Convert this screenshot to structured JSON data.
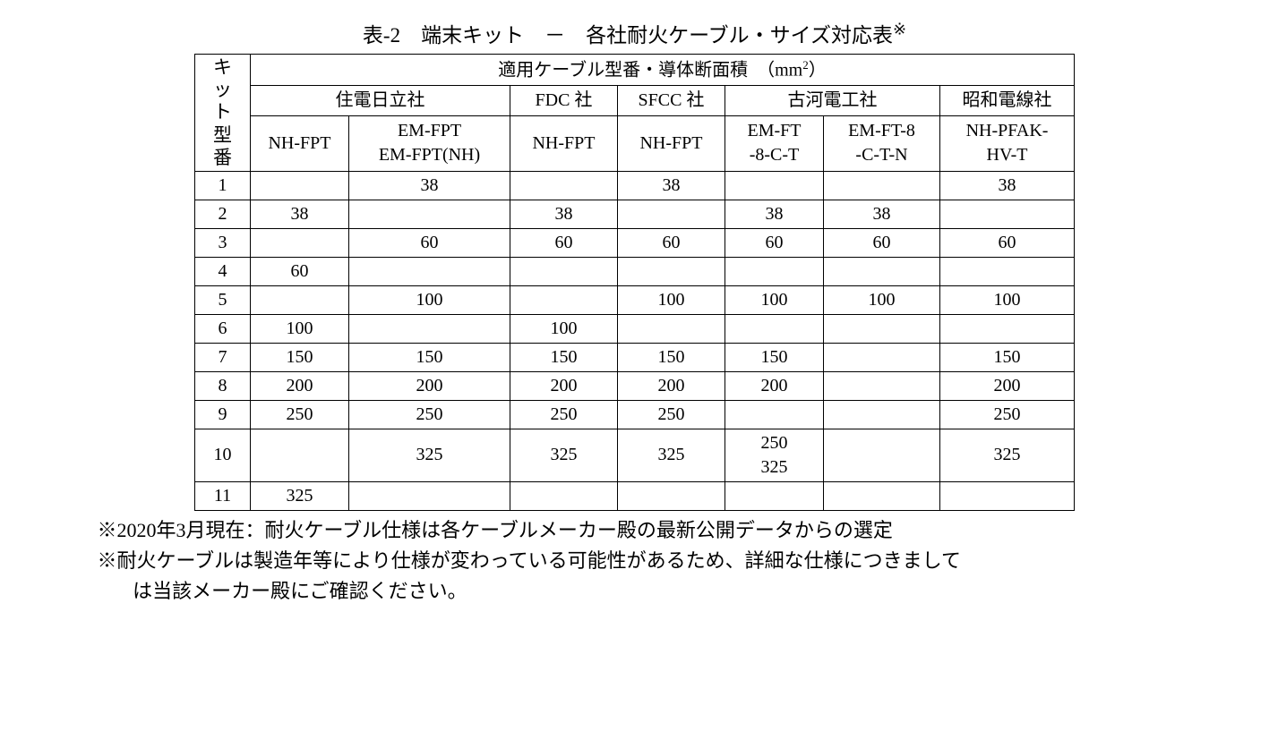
{
  "title": "表-2　端末キット　－　各社耐火ケーブル・サイズ対応表",
  "title_note_mark": "※",
  "header": {
    "kit_label_chars": [
      "キ",
      "ッ",
      "ト",
      "型",
      "番"
    ],
    "top": "適用ケーブル型番・導体断面積　（mm",
    "top_sup": "2",
    "top_close": "）",
    "makers": {
      "sumiden": "住電日立社",
      "fdc": "FDC 社",
      "sfcc": "SFCC 社",
      "furukawa": "古河電工社",
      "showa": "昭和電線社"
    },
    "models": {
      "a": "NH-FPT",
      "b1": "EM-FPT",
      "b2": "EM-FPT(NH)",
      "c": "NH-FPT",
      "d": "NH-FPT",
      "e1": "EM-FT",
      "e2": "-8-C-T",
      "f1": "EM-FT-8",
      "f2": "-C-T-N",
      "g1": "NH-PFAK-",
      "g2": "HV-T"
    }
  },
  "rows": [
    {
      "k": "1",
      "a": "",
      "b": "38",
      "c": "",
      "d": "38",
      "e": "",
      "f": "",
      "g": "38"
    },
    {
      "k": "2",
      "a": "38",
      "b": "",
      "c": "38",
      "d": "",
      "e": "38",
      "f": "38",
      "g": ""
    },
    {
      "k": "3",
      "a": "",
      "b": "60",
      "c": "60",
      "d": "60",
      "e": "60",
      "f": "60",
      "g": "60"
    },
    {
      "k": "4",
      "a": "60",
      "b": "",
      "c": "",
      "d": "",
      "e": "",
      "f": "",
      "g": ""
    },
    {
      "k": "5",
      "a": "",
      "b": "100",
      "c": "",
      "d": "100",
      "e": "100",
      "f": "100",
      "g": "100"
    },
    {
      "k": "6",
      "a": "100",
      "b": "",
      "c": "100",
      "d": "",
      "e": "",
      "f": "",
      "g": ""
    },
    {
      "k": "7",
      "a": "150",
      "b": "150",
      "c": "150",
      "d": "150",
      "e": "150",
      "f": "",
      "g": "150"
    },
    {
      "k": "8",
      "a": "200",
      "b": "200",
      "c": "200",
      "d": "200",
      "e": "200",
      "f": "",
      "g": "200"
    },
    {
      "k": "9",
      "a": "250",
      "b": "250",
      "c": "250",
      "d": "250",
      "e": "",
      "f": "",
      "g": "250"
    },
    {
      "k": "10",
      "a": "",
      "b": "325",
      "c": "325",
      "d": "325",
      "e": "250\n325",
      "f": "",
      "g": "325"
    },
    {
      "k": "11",
      "a": "325",
      "b": "",
      "c": "",
      "d": "",
      "e": "",
      "f": "",
      "g": ""
    }
  ],
  "notes": {
    "n1": "※2020年3月現在：耐火ケーブル仕様は各ケーブルメーカー殿の最新公開データからの選定",
    "n2a": "※耐火ケーブルは製造年等により仕様が変わっている可能性があるため、詳細な仕様につきまして",
    "n2b": "は当該メーカー殿にご確認ください。"
  }
}
